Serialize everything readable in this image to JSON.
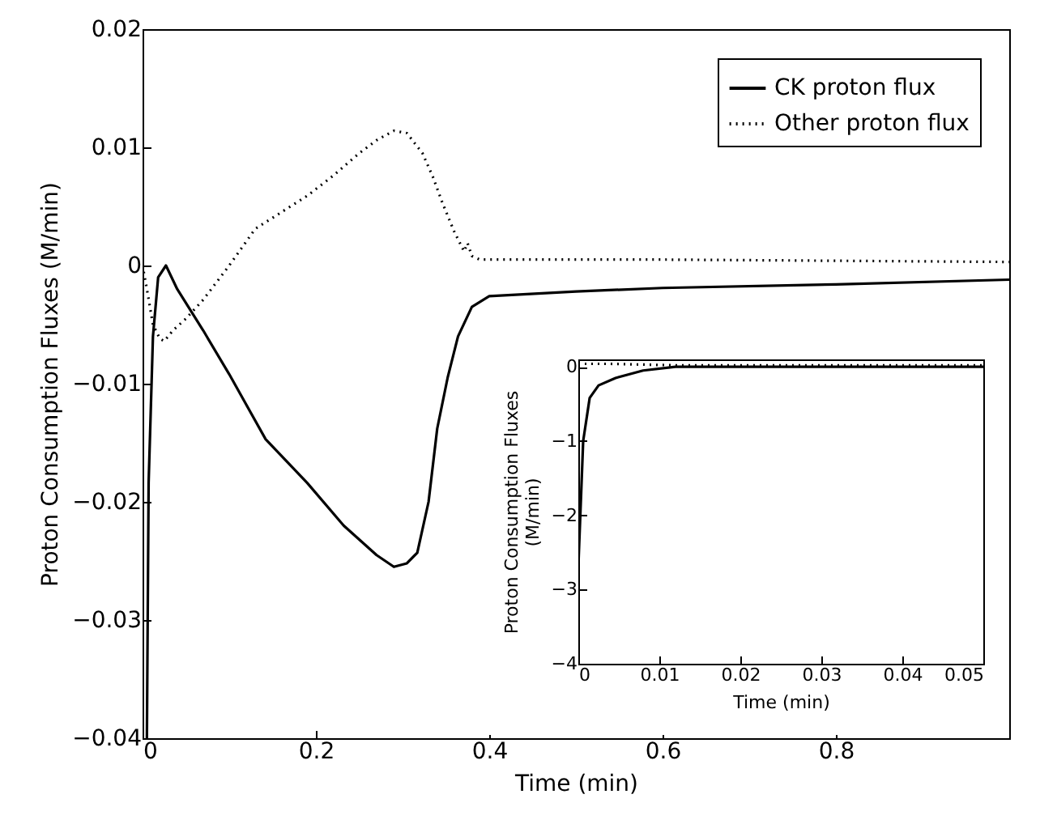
{
  "chart_data": [
    {
      "type": "line",
      "xlabel": "Time (min)",
      "ylabel": "Proton Consumption Fluxes (M/min)",
      "xlim": [
        0,
        1
      ],
      "ylim": [
        -0.04,
        0.02
      ],
      "xticks": [
        0,
        0.2,
        0.4,
        0.6,
        0.8
      ],
      "yticks": [
        -0.04,
        -0.03,
        -0.02,
        -0.01,
        0,
        0.01,
        0.02
      ],
      "legend": "top right",
      "grid": false,
      "series": [
        {
          "name": "CK proton flux",
          "color": "#000000",
          "line_style": "solid",
          "x": [
            0.005,
            0.007,
            0.012,
            0.018,
            0.027,
            0.04,
            0.07,
            0.1,
            0.142,
            0.19,
            0.232,
            0.27,
            0.29,
            0.305,
            0.317,
            0.33,
            0.34,
            0.352,
            0.364,
            0.38,
            0.4,
            0.5,
            0.6,
            0.8,
            1
          ],
          "values": [
            -0.04,
            -0.0184,
            -0.006,
            -0.001,
            0,
            -0.002,
            -0.0055,
            -0.0092,
            -0.0147,
            -0.0184,
            -0.022,
            -0.0245,
            -0.0255,
            -0.0252,
            -0.0243,
            -0.02,
            -0.0138,
            -0.0095,
            -0.006,
            -0.0035,
            -0.0026,
            -0.0022,
            -0.0019,
            -0.0016,
            -0.0012
          ]
        },
        {
          "name": "Other proton flux",
          "color": "#000000",
          "line_style": "dotted",
          "x": [
            0,
            0.005,
            0.012,
            0.02,
            0.025,
            0.035,
            0.05,
            0.07,
            0.1,
            0.13,
            0.16,
            0.19,
            0.22,
            0.25,
            0.27,
            0.29,
            0.305,
            0.323,
            0.335,
            0.346,
            0.36,
            0.371,
            0.375,
            0.38,
            0.389,
            0.4,
            0.6,
            0.8,
            1
          ],
          "values": [
            0,
            -0.002,
            -0.005,
            -0.0062,
            -0.0064,
            -0.0055,
            -0.0045,
            -0.0029,
            0,
            0.0031,
            0.0045,
            0.0059,
            0.0076,
            0.0095,
            0.0106,
            0.0114,
            0.0112,
            0.0095,
            0.0075,
            0.0053,
            0.0028,
            0.0012,
            0.0019,
            0.0008,
            0.0005,
            0.0005,
            0.0005,
            0.0004,
            0.0003
          ]
        }
      ]
    },
    {
      "type": "line",
      "xlabel": "Time (min)",
      "ylabel": "Proton Consumption Fluxes\n(M/min)",
      "xlim": [
        0,
        0.05
      ],
      "ylim": [
        -4,
        0.1
      ],
      "xticks": [
        0,
        0.01,
        0.02,
        0.03,
        0.04,
        0.05
      ],
      "yticks": [
        -4,
        -3,
        -2,
        -1,
        0
      ],
      "grid": false,
      "series": [
        {
          "color": "#000000",
          "line_style": "solid",
          "x": [
            0,
            0.0006,
            0.0014,
            0.0025,
            0.0046,
            0.008,
            0.012,
            0.05
          ],
          "values": [
            -2.7,
            -1,
            -0.42,
            -0.25,
            -0.15,
            -0.05,
            0,
            0
          ]
        },
        {
          "color": "#000000",
          "line_style": "dotted",
          "x": [
            0,
            0.004,
            0.008,
            0.012,
            0.05
          ],
          "values": [
            0.04,
            0.04,
            0.03,
            0.02,
            0.02
          ]
        }
      ]
    }
  ]
}
